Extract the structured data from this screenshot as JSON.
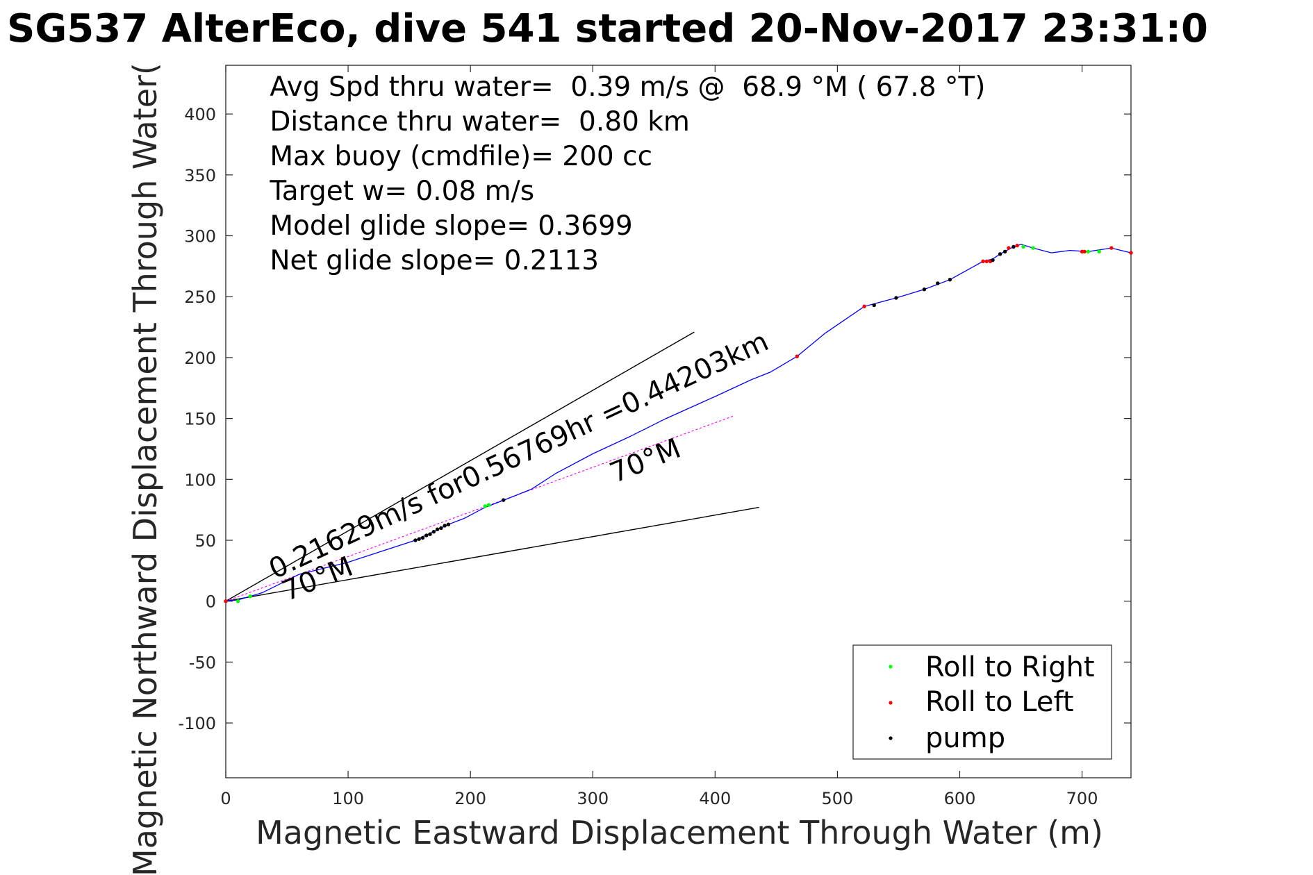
{
  "chart_data": {
    "type": "line",
    "title": "SG537 AlterEco, dive 541 started 20-Nov-2017 23:31:0",
    "xlabel": "Magnetic Eastward Displacement Through Water (m)",
    "ylabel": "Magnetic Northward Displacement Through Water(",
    "xlim": [
      0,
      740
    ],
    "ylim": [
      -145,
      440
    ],
    "xticks": [
      0,
      100,
      200,
      300,
      400,
      500,
      600,
      700
    ],
    "yticks": [
      -100,
      -50,
      0,
      50,
      100,
      150,
      200,
      250,
      300,
      350,
      400
    ],
    "grid": true,
    "legend_position": "bottom-right",
    "colors": {
      "track": "#0000ff",
      "roll_right": "#00ff00",
      "roll_left": "#ff0000",
      "pump": "#000000",
      "heading_lines": "#000000",
      "magenta_line": "#ff00ff"
    },
    "annotations": [
      "Avg Spd thru water=  0.39 m/s @  68.9 °M ( 67.8 °T)",
      "Distance thru water=  0.80 km",
      "Max buoy (cmdfile)= 200 cc",
      "Target w= 0.08 m/s",
      "Model glide slope= 0.3699",
      "Net glide slope= 0.2113"
    ],
    "rotated_labels": [
      {
        "text": "0.21629m/s for0.56769hr =0.44203km",
        "x": 40,
        "y": 18,
        "angle_deg": 25
      },
      {
        "text": "70°M",
        "x": 318,
        "y": 97,
        "angle_deg": 22
      },
      {
        "text": "70°M",
        "x": 50,
        "y": 0,
        "angle_deg": 22
      }
    ],
    "series": [
      {
        "name": "Roll to Right",
        "marker": "dot",
        "color": "#00ff00",
        "points": [
          [
            10,
            0
          ],
          [
            20,
            4
          ],
          [
            212,
            78
          ],
          [
            215,
            79
          ],
          [
            652,
            291
          ],
          [
            660,
            290
          ],
          [
            705,
            287
          ],
          [
            714,
            287
          ]
        ]
      },
      {
        "name": "Roll to Left",
        "marker": "dot",
        "color": "#ff0000",
        "points": [
          [
            0,
            0
          ],
          [
            467,
            201
          ],
          [
            522,
            242
          ],
          [
            619,
            279
          ],
          [
            622,
            279
          ],
          [
            625,
            279
          ],
          [
            640,
            290
          ],
          [
            647,
            292
          ],
          [
            700,
            287
          ],
          [
            702,
            287
          ],
          [
            724,
            290
          ],
          [
            740,
            286
          ]
        ]
      },
      {
        "name": "pump",
        "marker": "dot",
        "color": "#000000",
        "points": [
          [
            155,
            50
          ],
          [
            158,
            51
          ],
          [
            161,
            52
          ],
          [
            164,
            54
          ],
          [
            167,
            55
          ],
          [
            170,
            57
          ],
          [
            173,
            59
          ],
          [
            176,
            60
          ],
          [
            179,
            62
          ],
          [
            182,
            63
          ],
          [
            227,
            83
          ],
          [
            530,
            243
          ],
          [
            548,
            249
          ],
          [
            571,
            256
          ],
          [
            582,
            261
          ],
          [
            592,
            264
          ],
          [
            627,
            280
          ],
          [
            633,
            285
          ],
          [
            637,
            287
          ],
          [
            644,
            291
          ]
        ]
      }
    ],
    "track": {
      "name": "track",
      "color": "#0000ff",
      "points": [
        [
          0,
          0
        ],
        [
          10,
          1
        ],
        [
          20,
          4
        ],
        [
          30,
          7
        ],
        [
          60,
          22
        ],
        [
          100,
          32
        ],
        [
          155,
          50
        ],
        [
          182,
          63
        ],
        [
          195,
          68
        ],
        [
          212,
          77
        ],
        [
          230,
          84
        ],
        [
          250,
          92
        ],
        [
          270,
          105
        ],
        [
          300,
          121
        ],
        [
          330,
          135
        ],
        [
          360,
          150
        ],
        [
          400,
          168
        ],
        [
          430,
          182
        ],
        [
          445,
          188
        ],
        [
          467,
          201
        ],
        [
          490,
          220
        ],
        [
          522,
          242
        ],
        [
          548,
          249
        ],
        [
          571,
          256
        ],
        [
          592,
          264
        ],
        [
          619,
          279
        ],
        [
          627,
          281
        ],
        [
          633,
          285
        ],
        [
          644,
          291
        ],
        [
          650,
          293
        ],
        [
          660,
          290
        ],
        [
          675,
          286
        ],
        [
          690,
          288
        ],
        [
          705,
          287
        ],
        [
          724,
          290
        ],
        [
          740,
          286
        ]
      ]
    },
    "magenta_line": {
      "points": [
        [
          0,
          0
        ],
        [
          415,
          152
        ]
      ]
    },
    "heading_lines": [
      {
        "points": [
          [
            0,
            0
          ],
          [
            383,
            221
          ]
        ]
      },
      {
        "points": [
          [
            0,
            0
          ],
          [
            436,
            77
          ]
        ]
      }
    ]
  }
}
